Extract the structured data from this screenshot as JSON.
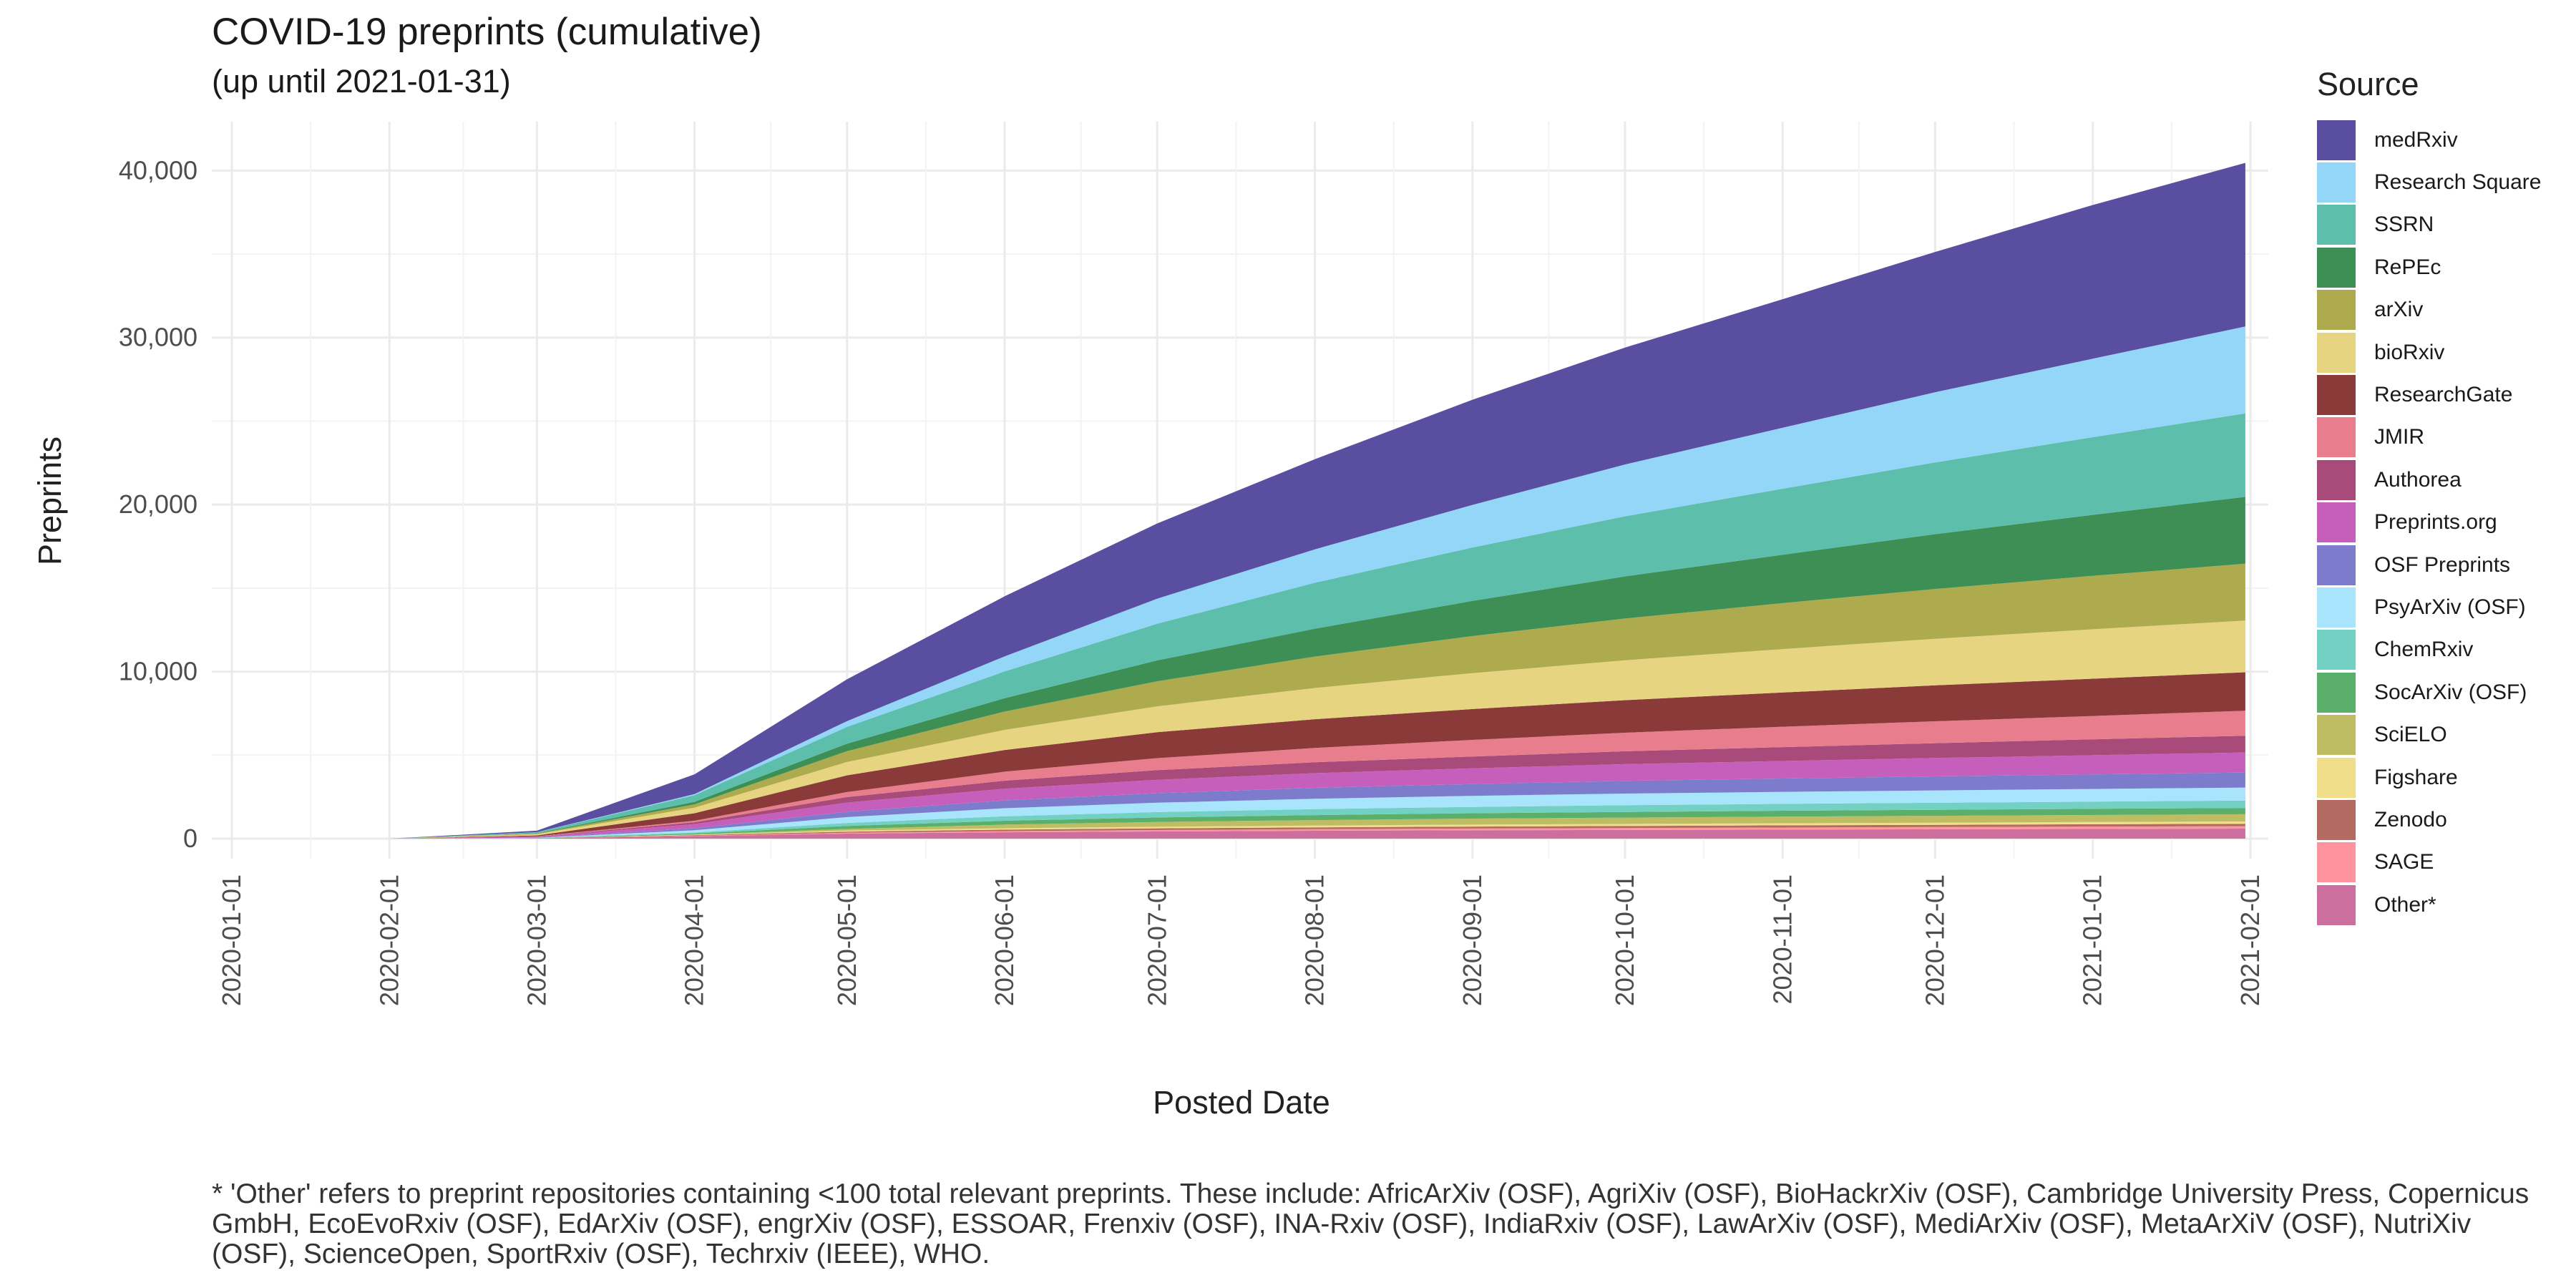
{
  "chart_data": {
    "type": "area",
    "stacked": true,
    "title": "COVID-19 preprints (cumulative)",
    "subtitle": "(up until 2021-01-31)",
    "xlabel": "Posted Date",
    "ylabel": "Preprints",
    "legend_title": "Source",
    "legend_position": "right",
    "grid": true,
    "x_ticks": [
      "2020-01-01",
      "2020-02-01",
      "2020-03-01",
      "2020-04-01",
      "2020-05-01",
      "2020-06-01",
      "2020-07-01",
      "2020-08-01",
      "2020-09-01",
      "2020-10-01",
      "2020-11-01",
      "2020-12-01",
      "2021-01-01",
      "2021-02-01"
    ],
    "y_ticks": [
      "0",
      "10,000",
      "20,000",
      "30,000",
      "40,000"
    ],
    "ylim": [
      0,
      42000
    ],
    "x": [
      "2020-01-01",
      "2020-02-01",
      "2020-03-01",
      "2020-04-01",
      "2020-05-01",
      "2020-06-01",
      "2020-07-01",
      "2020-08-01",
      "2020-09-01",
      "2020-10-01",
      "2020-11-01",
      "2020-12-01",
      "2021-01-01",
      "2021-01-31"
    ],
    "series": [
      {
        "name": "Other*",
        "color": "#cc6f9e",
        "values": [
          0,
          0,
          20,
          150,
          300,
          380,
          430,
          470,
          500,
          520,
          540,
          560,
          580,
          600
        ]
      },
      {
        "name": "SAGE",
        "color": "#ff949e",
        "values": [
          0,
          0,
          2,
          20,
          50,
          70,
          85,
          95,
          105,
          115,
          125,
          132,
          140,
          145
        ]
      },
      {
        "name": "Zenodo",
        "color": "#b36b61",
        "values": [
          0,
          0,
          3,
          40,
          70,
          90,
          100,
          110,
          120,
          125,
          130,
          135,
          140,
          145
        ]
      },
      {
        "name": "Figshare",
        "color": "#f0de8a",
        "values": [
          0,
          0,
          2,
          30,
          60,
          80,
          95,
          105,
          115,
          120,
          125,
          130,
          135,
          140
        ]
      },
      {
        "name": "SciELO",
        "color": "#bfbd64",
        "values": [
          0,
          0,
          0,
          10,
          100,
          220,
          290,
          330,
          360,
          380,
          400,
          410,
          420,
          430
        ]
      },
      {
        "name": "SocArXiv (OSF)",
        "color": "#5caf6b",
        "values": [
          0,
          0,
          5,
          60,
          180,
          230,
          270,
          300,
          320,
          340,
          350,
          360,
          370,
          380
        ]
      },
      {
        "name": "ChemRxiv",
        "color": "#72d1c2",
        "values": [
          0,
          0,
          10,
          60,
          180,
          270,
          320,
          360,
          380,
          400,
          410,
          420,
          430,
          440
        ]
      },
      {
        "name": "PsyArXiv (OSF)",
        "color": "#a8e4fb",
        "values": [
          0,
          0,
          10,
          130,
          350,
          480,
          560,
          620,
          660,
          700,
          720,
          740,
          760,
          780
        ]
      },
      {
        "name": "OSF Preprints",
        "color": "#7d7bcc",
        "values": [
          0,
          0,
          10,
          120,
          320,
          470,
          570,
          650,
          710,
          760,
          800,
          840,
          870,
          900
        ]
      },
      {
        "name": "Preprints.org",
        "color": "#c65fbc",
        "values": [
          0,
          0,
          60,
          250,
          550,
          700,
          800,
          880,
          940,
          1000,
          1050,
          1100,
          1150,
          1200
        ]
      },
      {
        "name": "Authorea",
        "color": "#a84b7a",
        "values": [
          0,
          0,
          10,
          110,
          330,
          480,
          580,
          650,
          710,
          770,
          830,
          890,
          950,
          1000
        ]
      },
      {
        "name": "JMIR",
        "color": "#e87e8d",
        "values": [
          0,
          0,
          10,
          90,
          300,
          540,
          720,
          860,
          990,
          1110,
          1220,
          1310,
          1400,
          1500
        ]
      },
      {
        "name": "ResearchGate",
        "color": "#8b3a3a",
        "values": [
          0,
          0,
          50,
          450,
          1000,
          1300,
          1550,
          1720,
          1850,
          1950,
          2050,
          2150,
          2230,
          2300
        ]
      },
      {
        "name": "bioRxiv",
        "color": "#e6d480",
        "values": [
          0,
          0,
          80,
          330,
          800,
          1200,
          1550,
          1870,
          2150,
          2390,
          2600,
          2790,
          2960,
          3100
        ]
      },
      {
        "name": "arXiv",
        "color": "#adab4e",
        "values": [
          0,
          0,
          30,
          200,
          650,
          1100,
          1500,
          1880,
          2220,
          2500,
          2750,
          2980,
          3200,
          3400
        ]
      },
      {
        "name": "RePEc",
        "color": "#3e8f55",
        "values": [
          0,
          0,
          20,
          150,
          450,
          800,
          1250,
          1670,
          2100,
          2520,
          2900,
          3280,
          3650,
          4000
        ]
      },
      {
        "name": "SSRN",
        "color": "#5dbfab",
        "values": [
          0,
          0,
          60,
          400,
          1000,
          1600,
          2200,
          2750,
          3200,
          3600,
          3950,
          4300,
          4650,
          5000
        ]
      },
      {
        "name": "Research Square",
        "color": "#94d6f7",
        "values": [
          0,
          0,
          5,
          70,
          350,
          900,
          1500,
          2000,
          2550,
          3100,
          3650,
          4200,
          4700,
          5200
        ]
      },
      {
        "name": "medRxiv",
        "color": "#5a4ea0",
        "values": [
          0,
          0,
          90,
          1180,
          2500,
          3600,
          4500,
          5400,
          6300,
          7000,
          7700,
          8400,
          9200,
          9800
        ]
      }
    ]
  },
  "footnote": "* 'Other' refers to preprint repositories containing <100 total relevant preprints. These include: AfricArXiv (OSF), AgriXiv (OSF), BioHackrXiv (OSF), Cambridge University Press, Copernicus GmbH, EcoEvoRxiv (OSF), EdArXiv (OSF), engrXiv (OSF), ESSOAR, Frenxiv (OSF), INA-Rxiv (OSF), IndiaRxiv (OSF), LawArXiv (OSF), MediArXiv (OSF), MetaArXiV (OSF), NutriXiv (OSF), ScienceOpen, SportRxiv (OSF), Techrxiv (IEEE), WHO."
}
